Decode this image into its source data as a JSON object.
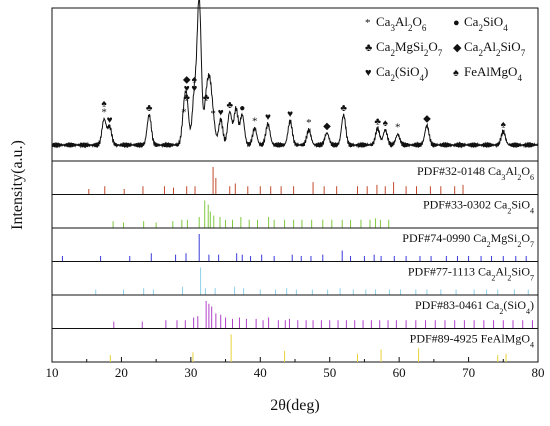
{
  "chart_data": {
    "type": "line",
    "xlabel": "2θ(deg)",
    "ylabel": "Intensity(a.u.)",
    "xlim": [
      10,
      80
    ],
    "xticks": [
      10,
      20,
      30,
      40,
      50,
      60,
      70,
      80
    ],
    "grid": false,
    "legend_position": "top-right",
    "legend": [
      {
        "symbol": "*",
        "html": "Ca<tspan baseline-shift='sub' font-size='9'>3</tspan>Al<tspan baseline-shift='sub' font-size='9'>2</tspan>O<tspan baseline-shift='sub' font-size='9'>6</tspan>",
        "name": "Ca3Al2O6"
      },
      {
        "symbol": "●",
        "html": "Ca<tspan baseline-shift='sub' font-size='9'>2</tspan>SiO<tspan baseline-shift='sub' font-size='9'>4</tspan>",
        "name": "Ca2SiO4"
      },
      {
        "symbol": "♣",
        "html": "Ca<tspan baseline-shift='sub' font-size='9'>2</tspan>MgSi<tspan baseline-shift='sub' font-size='9'>2</tspan>O<tspan baseline-shift='sub' font-size='9'>7</tspan>",
        "name": "Ca2MgSi2O7"
      },
      {
        "symbol": "◆",
        "html": "Ca<tspan baseline-shift='sub' font-size='9'>2</tspan>Al<tspan baseline-shift='sub' font-size='9'>2</tspan>SiO<tspan baseline-shift='sub' font-size='9'>7</tspan>",
        "name": "Ca2Al2SiO7"
      },
      {
        "symbol": "♥",
        "html": "Ca<tspan baseline-shift='sub' font-size='9'>2</tspan>(SiO<tspan baseline-shift='sub' font-size='9'>4</tspan>)",
        "name": "Ca2(SiO4)"
      },
      {
        "symbol": "♠",
        "html": "FeAlMgO<tspan baseline-shift='sub' font-size='9'>4</tspan>",
        "name": "FeAlMgO4"
      }
    ],
    "pattern": {
      "baseline": 0.06,
      "peaks": [
        {
          "x": 17.5,
          "h": 0.17,
          "markers": [
            "*",
            "♠"
          ]
        },
        {
          "x": 18.3,
          "h": 0.12,
          "markers": [
            "♥"
          ]
        },
        {
          "x": 24.0,
          "h": 0.2,
          "markers": [
            "♣"
          ]
        },
        {
          "x": 29.0,
          "h": 0.17,
          "markers": [
            "*"
          ]
        },
        {
          "x": 29.4,
          "h": 0.27,
          "markers": [
            "♣",
            "♥",
            "◆"
          ]
        },
        {
          "x": 30.5,
          "h": 0.33,
          "markers": [
            "♥",
            "♠"
          ]
        },
        {
          "x": 31.2,
          "h": 0.96,
          "markers": [
            "♥",
            "●"
          ]
        },
        {
          "x": 32.2,
          "h": 0.27,
          "markers": [
            "♣"
          ]
        },
        {
          "x": 32.7,
          "h": 0.35,
          "markers": []
        },
        {
          "x": 33.2,
          "h": 0.16,
          "markers": [
            "*"
          ]
        },
        {
          "x": 34.3,
          "h": 0.17,
          "markers": [
            "♥"
          ]
        },
        {
          "x": 35.6,
          "h": 0.22,
          "markers": [
            "♣"
          ]
        },
        {
          "x": 36.5,
          "h": 0.24,
          "markers": []
        },
        {
          "x": 37.4,
          "h": 0.2,
          "markers": [
            "●"
          ]
        },
        {
          "x": 39.2,
          "h": 0.11,
          "markers": [
            "*"
          ]
        },
        {
          "x": 41.1,
          "h": 0.14,
          "markers": [
            "♥"
          ]
        },
        {
          "x": 44.3,
          "h": 0.16,
          "markers": [
            "♥"
          ]
        },
        {
          "x": 47.0,
          "h": 0.1,
          "markers": [
            "*"
          ]
        },
        {
          "x": 49.6,
          "h": 0.08,
          "markers": [
            "◆"
          ]
        },
        {
          "x": 52.0,
          "h": 0.2,
          "markers": [
            "♣"
          ]
        },
        {
          "x": 56.9,
          "h": 0.11,
          "markers": [
            "♣"
          ]
        },
        {
          "x": 58.0,
          "h": 0.1,
          "markers": [
            "♠"
          ]
        },
        {
          "x": 59.8,
          "h": 0.07,
          "markers": [
            "*"
          ]
        },
        {
          "x": 64.0,
          "h": 0.13,
          "markers": [
            "◆"
          ]
        },
        {
          "x": 75.0,
          "h": 0.09,
          "markers": [
            "♠"
          ]
        }
      ]
    },
    "references": [
      {
        "pdf": "PDF#32-0148",
        "html": "Ca<tspan baseline-shift='sub' font-size='8'>3</tspan>Al<tspan baseline-shift='sub' font-size='8'>2</tspan>O<tspan baseline-shift='sub' font-size='8'>6</tspan>",
        "name": "Ca3Al2O6",
        "color": "#c24a2a",
        "lines": [
          [
            15.3,
            0.2
          ],
          [
            17.6,
            0.3
          ],
          [
            20.4,
            0.2
          ],
          [
            23.1,
            0.3
          ],
          [
            26.2,
            0.3
          ],
          [
            27.5,
            0.25
          ],
          [
            29.4,
            0.3
          ],
          [
            30.6,
            0.3
          ],
          [
            33.2,
            1.0
          ],
          [
            33.6,
            0.6
          ],
          [
            35.6,
            0.3
          ],
          [
            36.4,
            0.4
          ],
          [
            38.2,
            0.3
          ],
          [
            40.0,
            0.3
          ],
          [
            41.5,
            0.3
          ],
          [
            43.0,
            0.3
          ],
          [
            44.8,
            0.3
          ],
          [
            47.6,
            0.45
          ],
          [
            49.2,
            0.3
          ],
          [
            51.0,
            0.3
          ],
          [
            54.0,
            0.3
          ],
          [
            55.4,
            0.3
          ],
          [
            56.8,
            0.35
          ],
          [
            58.0,
            0.3
          ],
          [
            59.2,
            0.45
          ],
          [
            61.0,
            0.3
          ],
          [
            62.5,
            0.3
          ],
          [
            64.5,
            0.3
          ],
          [
            66.0,
            0.3
          ],
          [
            68.0,
            0.3
          ],
          [
            69.2,
            0.35
          ]
        ]
      },
      {
        "pdf": "PDF#33-0302",
        "html": "Ca<tspan baseline-shift='sub' font-size='8'>2</tspan>SiO<tspan baseline-shift='sub' font-size='8'>4</tspan>",
        "name": "Ca2SiO4",
        "color": "#7fc93f",
        "lines": [
          [
            18.8,
            0.25
          ],
          [
            20.3,
            0.2
          ],
          [
            23.2,
            0.25
          ],
          [
            25.0,
            0.2
          ],
          [
            27.4,
            0.25
          ],
          [
            28.7,
            0.3
          ],
          [
            29.5,
            0.3
          ],
          [
            31.2,
            0.4
          ],
          [
            32.0,
            1.0
          ],
          [
            32.5,
            0.85
          ],
          [
            32.8,
            0.6
          ],
          [
            33.3,
            0.45
          ],
          [
            34.2,
            0.4
          ],
          [
            35.0,
            0.3
          ],
          [
            36.0,
            0.3
          ],
          [
            37.2,
            0.4
          ],
          [
            38.4,
            0.3
          ],
          [
            39.6,
            0.3
          ],
          [
            41.2,
            0.4
          ],
          [
            42.0,
            0.3
          ],
          [
            43.5,
            0.3
          ],
          [
            44.8,
            0.3
          ],
          [
            46.0,
            0.3
          ],
          [
            47.4,
            0.3
          ],
          [
            49.0,
            0.3
          ],
          [
            50.3,
            0.3
          ],
          [
            51.8,
            0.3
          ],
          [
            53.0,
            0.3
          ],
          [
            54.5,
            0.3
          ],
          [
            55.8,
            0.3
          ],
          [
            56.6,
            0.35
          ],
          [
            57.3,
            0.3
          ],
          [
            58.5,
            0.3
          ]
        ]
      },
      {
        "pdf": "PDF#74-0990",
        "html": "Ca<tspan baseline-shift='sub' font-size='8'>2</tspan>MgSi<tspan baseline-shift='sub' font-size='8'>2</tspan>O<tspan baseline-shift='sub' font-size='8'>7</tspan>",
        "name": "Ca2MgSi2O7",
        "color": "#3a3ad8",
        "lines": [
          [
            11.5,
            0.2
          ],
          [
            17.0,
            0.2
          ],
          [
            21.2,
            0.2
          ],
          [
            24.3,
            0.3
          ],
          [
            27.8,
            0.25
          ],
          [
            29.3,
            0.3
          ],
          [
            31.2,
            1.0
          ],
          [
            32.6,
            0.25
          ],
          [
            34.0,
            0.25
          ],
          [
            36.6,
            0.3
          ],
          [
            37.4,
            0.25
          ],
          [
            38.6,
            0.2
          ],
          [
            40.2,
            0.25
          ],
          [
            42.0,
            0.2
          ],
          [
            44.6,
            0.25
          ],
          [
            45.9,
            0.2
          ],
          [
            47.3,
            0.2
          ],
          [
            49.0,
            0.25
          ],
          [
            51.8,
            0.4
          ],
          [
            53.0,
            0.2
          ],
          [
            55.0,
            0.2
          ],
          [
            56.4,
            0.25
          ],
          [
            57.4,
            0.2
          ],
          [
            59.3,
            0.2
          ],
          [
            61.0,
            0.2
          ],
          [
            63.0,
            0.2
          ],
          [
            64.6,
            0.2
          ],
          [
            66.8,
            0.2
          ],
          [
            68.4,
            0.2
          ],
          [
            70.0,
            0.2
          ],
          [
            71.8,
            0.2
          ],
          [
            73.3,
            0.2
          ],
          [
            75.0,
            0.2
          ],
          [
            76.8,
            0.2
          ],
          [
            78.3,
            0.2
          ]
        ]
      },
      {
        "pdf": "PDF#77-1113",
        "html": "Ca<tspan baseline-shift='sub' font-size='8'>2</tspan>Al<tspan baseline-shift='sub' font-size='8'>2</tspan>SiO<tspan baseline-shift='sub' font-size='8'>7</tspan>",
        "name": "Ca2Al2SiO7",
        "color": "#8fd0ea",
        "lines": [
          [
            16.3,
            0.2
          ],
          [
            20.3,
            0.2
          ],
          [
            23.2,
            0.25
          ],
          [
            24.6,
            0.2
          ],
          [
            28.8,
            0.3
          ],
          [
            31.4,
            1.0
          ],
          [
            32.1,
            0.25
          ],
          [
            33.5,
            0.25
          ],
          [
            36.3,
            0.3
          ],
          [
            37.6,
            0.25
          ],
          [
            40.0,
            0.2
          ],
          [
            42.2,
            0.2
          ],
          [
            43.8,
            0.25
          ],
          [
            45.2,
            0.2
          ],
          [
            47.5,
            0.2
          ],
          [
            49.7,
            0.2
          ],
          [
            51.5,
            0.25
          ],
          [
            53.4,
            0.2
          ],
          [
            55.2,
            0.2
          ],
          [
            56.6,
            0.2
          ],
          [
            58.6,
            0.2
          ],
          [
            60.2,
            0.2
          ],
          [
            62.4,
            0.2
          ],
          [
            64.0,
            0.2
          ],
          [
            66.0,
            0.2
          ],
          [
            68.2,
            0.2
          ],
          [
            70.8,
            0.2
          ],
          [
            72.6,
            0.2
          ],
          [
            74.2,
            0.2
          ],
          [
            76.6,
            0.2
          ],
          [
            78.6,
            0.2
          ]
        ]
      },
      {
        "pdf": "PDF#83-0461",
        "html": "Ca<tspan baseline-shift='sub' font-size='8'>2</tspan>(SiO<tspan baseline-shift='sub' font-size='8'>4</tspan>)",
        "name": "Ca2(SiO4)",
        "color": "#b040c8",
        "lines": [
          [
            18.9,
            0.25
          ],
          [
            23.0,
            0.25
          ],
          [
            26.4,
            0.3
          ],
          [
            28.0,
            0.3
          ],
          [
            29.2,
            0.3
          ],
          [
            30.4,
            0.4
          ],
          [
            31.0,
            0.45
          ],
          [
            32.2,
            1.0
          ],
          [
            32.6,
            0.9
          ],
          [
            33.0,
            0.8
          ],
          [
            33.6,
            0.55
          ],
          [
            34.3,
            0.5
          ],
          [
            35.0,
            0.4
          ],
          [
            36.0,
            0.35
          ],
          [
            37.0,
            0.4
          ],
          [
            38.0,
            0.35
          ],
          [
            39.4,
            0.35
          ],
          [
            40.4,
            0.3
          ],
          [
            41.2,
            0.4
          ],
          [
            42.6,
            0.3
          ],
          [
            43.6,
            0.3
          ],
          [
            44.2,
            0.35
          ],
          [
            45.4,
            0.3
          ],
          [
            46.6,
            0.3
          ],
          [
            47.6,
            0.3
          ],
          [
            48.8,
            0.3
          ],
          [
            50.0,
            0.3
          ],
          [
            51.2,
            0.3
          ],
          [
            52.4,
            0.3
          ],
          [
            53.6,
            0.3
          ],
          [
            54.8,
            0.3
          ],
          [
            56.0,
            0.3
          ],
          [
            57.2,
            0.3
          ],
          [
            58.4,
            0.3
          ],
          [
            59.6,
            0.3
          ],
          [
            61.0,
            0.3
          ],
          [
            62.4,
            0.3
          ],
          [
            63.8,
            0.3
          ],
          [
            65.2,
            0.3
          ],
          [
            66.6,
            0.3
          ],
          [
            68.0,
            0.3
          ],
          [
            69.4,
            0.3
          ],
          [
            70.8,
            0.3
          ],
          [
            72.2,
            0.3
          ],
          [
            73.6,
            0.3
          ],
          [
            75.0,
            0.3
          ],
          [
            76.4,
            0.3
          ],
          [
            77.8,
            0.3
          ],
          [
            79.2,
            0.3
          ]
        ]
      },
      {
        "pdf": "PDF#89-4925",
        "html": "FeAlMgO<tspan baseline-shift='sub' font-size='8'>4</tspan>",
        "name": "FeAlMgO4",
        "color": "#e8d23a",
        "lines": [
          [
            18.4,
            0.25
          ],
          [
            30.3,
            0.35
          ],
          [
            35.8,
            1.0
          ],
          [
            43.5,
            0.4
          ],
          [
            54.0,
            0.3
          ],
          [
            57.4,
            0.45
          ],
          [
            62.8,
            0.5
          ],
          [
            74.2,
            0.25
          ],
          [
            75.4,
            0.3
          ]
        ]
      }
    ]
  }
}
